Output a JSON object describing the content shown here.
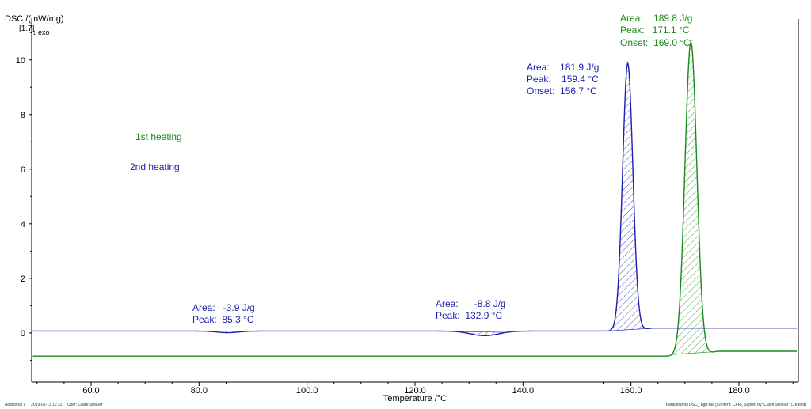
{
  "chart_data": {
    "type": "line",
    "ylabel": "DSC /(mW/mg)",
    "y_marker": "[1.7]",
    "exo_label": "exo",
    "xlabel": "Temperature /°C",
    "xlim": [
      49,
      191
    ],
    "ylim": [
      -1.8,
      11.5
    ],
    "x_ticks": [
      60,
      80,
      100,
      120,
      140,
      160,
      180
    ],
    "x_tick_labels": [
      "60.0",
      "80.0",
      "100.0",
      "120.0",
      "140.0",
      "160.0",
      "180.0"
    ],
    "y_ticks": [
      0,
      2,
      4,
      6,
      8,
      10
    ],
    "y_tick_labels": [
      "0",
      "2",
      "4",
      "6",
      "8",
      "10"
    ],
    "series": [
      {
        "name": "1st heating",
        "color": "#1a8a1a",
        "baseline": -0.85,
        "peak": {
          "center": 171.1,
          "height": 10.7,
          "sigma": 1.1
        },
        "points": [
          [
            49,
            -0.85
          ],
          [
            120,
            -0.85
          ],
          [
            168,
            -0.8
          ],
          [
            169,
            -0.2
          ],
          [
            170,
            4.5
          ],
          [
            171.1,
            10.7
          ],
          [
            172,
            8.0
          ],
          [
            173,
            3.0
          ],
          [
            174,
            0.5
          ],
          [
            175,
            -0.3
          ],
          [
            177,
            -0.62
          ],
          [
            190,
            -0.67
          ]
        ]
      },
      {
        "name": "2nd heating",
        "color": "#2020b0",
        "baseline": 0.07,
        "peak": {
          "center": 159.4,
          "height": 10.0,
          "sigma": 0.95
        },
        "points": [
          [
            49,
            0.07
          ],
          [
            80,
            0.06
          ],
          [
            85.3,
            0.0
          ],
          [
            90,
            0.05
          ],
          [
            125,
            0.05
          ],
          [
            132.9,
            -0.12
          ],
          [
            138,
            0.04
          ],
          [
            156,
            0.2
          ],
          [
            157.5,
            3.0
          ],
          [
            159.4,
            10.0
          ],
          [
            161,
            5.0
          ],
          [
            162.5,
            0.8
          ],
          [
            165,
            0.2
          ],
          [
            190,
            0.18
          ]
        ]
      }
    ],
    "annotations": [
      {
        "series": "1st heating",
        "lines": [
          "Area:    189.8 J/g",
          "Peak:   171.1 °C",
          "Onset:  169.0 °C"
        ]
      },
      {
        "series": "2nd heating",
        "lines": [
          "Area:    181.9 J/g",
          "Peak:    159.4 °C",
          "Onset:  156.7 °C"
        ]
      },
      {
        "series": "2nd heating",
        "lines": [
          "Area:   -3.9 J/g",
          "Peak:  85.3 °C"
        ]
      },
      {
        "series": "2nd heating",
        "lines": [
          "Area:      -8.8 J/g",
          "Peak:  132.9 °C"
        ]
      }
    ],
    "legend": [
      "1st heating",
      "2nd heating"
    ]
  },
  "footer": {
    "left": "Additional 1     2019-05-13 11:12     User: Claire Straßer",
    "right": "Paracetamol DSC_ ngb-taa [Content: CFR], Signed by: Claire Straßer (Created)"
  }
}
